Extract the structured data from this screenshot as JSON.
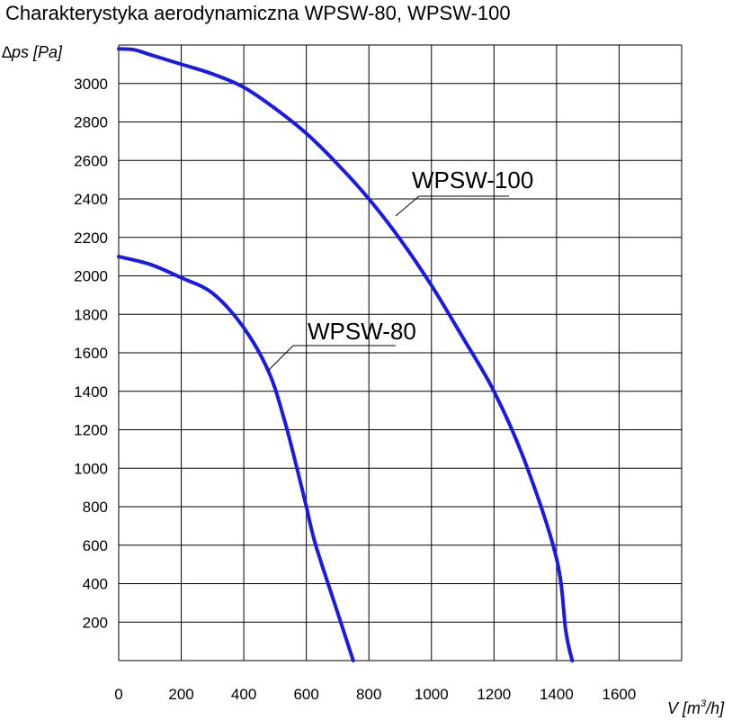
{
  "chart_data": {
    "type": "line",
    "title": "Charakterystyka aerodynamiczna  WPSW-80, WPSW-100",
    "ylabel": "∆ps [Pa]",
    "xlabel_main": "V [m",
    "xlabel_sup": "3",
    "xlabel_end": "/h]",
    "xlim": [
      0,
      1800
    ],
    "ylim": [
      0,
      3200
    ],
    "x_ticks": [
      0,
      200,
      400,
      600,
      800,
      1000,
      1200,
      1400,
      1600
    ],
    "y_ticks": [
      200,
      400,
      600,
      800,
      1000,
      1200,
      1400,
      1600,
      1800,
      2000,
      2200,
      2400,
      2600,
      2800,
      3000
    ],
    "grid": true,
    "series": [
      {
        "name": "WPSW-100",
        "color": "#1a1ae6",
        "x": [
          0,
          50,
          100,
          200,
          300,
          400,
          500,
          600,
          700,
          800,
          900,
          1000,
          1100,
          1200,
          1300,
          1400,
          1430,
          1450
        ],
        "y": [
          3180,
          3175,
          3150,
          3100,
          3050,
          2980,
          2870,
          2740,
          2580,
          2400,
          2190,
          1950,
          1680,
          1400,
          1030,
          530,
          150,
          0
        ]
      },
      {
        "name": "WPSW-80",
        "color": "#1a1ae6",
        "x": [
          0,
          100,
          200,
          300,
          400,
          480,
          530,
          570,
          600,
          630,
          700,
          750
        ],
        "y": [
          2100,
          2060,
          1990,
          1910,
          1730,
          1500,
          1250,
          1000,
          800,
          600,
          250,
          0
        ]
      }
    ]
  }
}
